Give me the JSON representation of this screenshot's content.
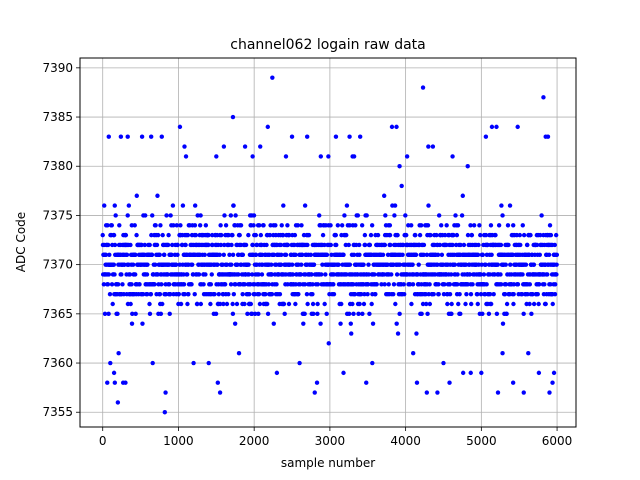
{
  "chart_data": {
    "type": "scatter",
    "title": "channel062 logain raw data",
    "xlabel": "sample number",
    "ylabel": "ADC Code",
    "xlim": [
      -300,
      6250
    ],
    "ylim": [
      7353.5,
      7391
    ],
    "xticks": [
      0,
      1000,
      2000,
      3000,
      4000,
      5000,
      6000
    ],
    "yticks": [
      7355,
      7360,
      7365,
      7370,
      7375,
      7380,
      7385,
      7390
    ],
    "grid": true,
    "marker_color": "#0000ff",
    "series": [
      {
        "n_points": 6000,
        "x_range": [
          0,
          5999
        ],
        "bulk_range": [
          7363,
          7377
        ],
        "center": 7370,
        "points": [
          [
            20,
            7376
          ],
          [
            60,
            7358
          ],
          [
            80,
            7383
          ],
          [
            100,
            7360
          ],
          [
            150,
            7359
          ],
          [
            160,
            7358
          ],
          [
            200,
            7356
          ],
          [
            210,
            7361
          ],
          [
            240,
            7383
          ],
          [
            270,
            7358
          ],
          [
            300,
            7358
          ],
          [
            330,
            7383
          ],
          [
            520,
            7383
          ],
          [
            640,
            7383
          ],
          [
            660,
            7360
          ],
          [
            780,
            7383
          ],
          [
            820,
            7355
          ],
          [
            830,
            7357
          ],
          [
            1020,
            7384
          ],
          [
            1080,
            7382
          ],
          [
            1100,
            7381
          ],
          [
            1200,
            7360
          ],
          [
            1400,
            7360
          ],
          [
            1500,
            7381
          ],
          [
            1520,
            7358
          ],
          [
            1550,
            7357
          ],
          [
            1600,
            7382
          ],
          [
            1720,
            7385
          ],
          [
            1800,
            7361
          ],
          [
            1880,
            7382
          ],
          [
            1980,
            7381
          ],
          [
            2080,
            7382
          ],
          [
            2180,
            7384
          ],
          [
            2240,
            7389
          ],
          [
            2300,
            7359
          ],
          [
            2420,
            7381
          ],
          [
            2500,
            7383
          ],
          [
            2600,
            7360
          ],
          [
            2700,
            7383
          ],
          [
            2800,
            7357
          ],
          [
            2830,
            7358
          ],
          [
            2880,
            7381
          ],
          [
            2980,
            7381
          ],
          [
            3080,
            7383
          ],
          [
            3180,
            7359
          ],
          [
            3260,
            7383
          ],
          [
            3300,
            7381
          ],
          [
            3320,
            7381
          ],
          [
            3400,
            7383
          ],
          [
            3480,
            7358
          ],
          [
            3560,
            7360
          ],
          [
            3820,
            7384
          ],
          [
            3880,
            7384
          ],
          [
            3920,
            7380
          ],
          [
            4020,
            7381
          ],
          [
            4100,
            7361
          ],
          [
            4150,
            7358
          ],
          [
            4230,
            7388
          ],
          [
            4280,
            7357
          ],
          [
            4300,
            7382
          ],
          [
            4360,
            7382
          ],
          [
            4420,
            7357
          ],
          [
            4500,
            7360
          ],
          [
            4580,
            7358
          ],
          [
            4620,
            7381
          ],
          [
            4760,
            7359
          ],
          [
            4820,
            7380
          ],
          [
            4860,
            7359
          ],
          [
            5000,
            7359
          ],
          [
            5060,
            7383
          ],
          [
            5140,
            7384
          ],
          [
            5200,
            7384
          ],
          [
            5220,
            7357
          ],
          [
            5280,
            7361
          ],
          [
            5420,
            7358
          ],
          [
            5480,
            7384
          ],
          [
            5560,
            7357
          ],
          [
            5620,
            7361
          ],
          [
            5760,
            7359
          ],
          [
            5820,
            7387
          ],
          [
            5850,
            7383
          ],
          [
            5880,
            7383
          ],
          [
            5900,
            7357
          ],
          [
            5940,
            7358
          ],
          [
            5960,
            7359
          ]
        ]
      }
    ]
  }
}
